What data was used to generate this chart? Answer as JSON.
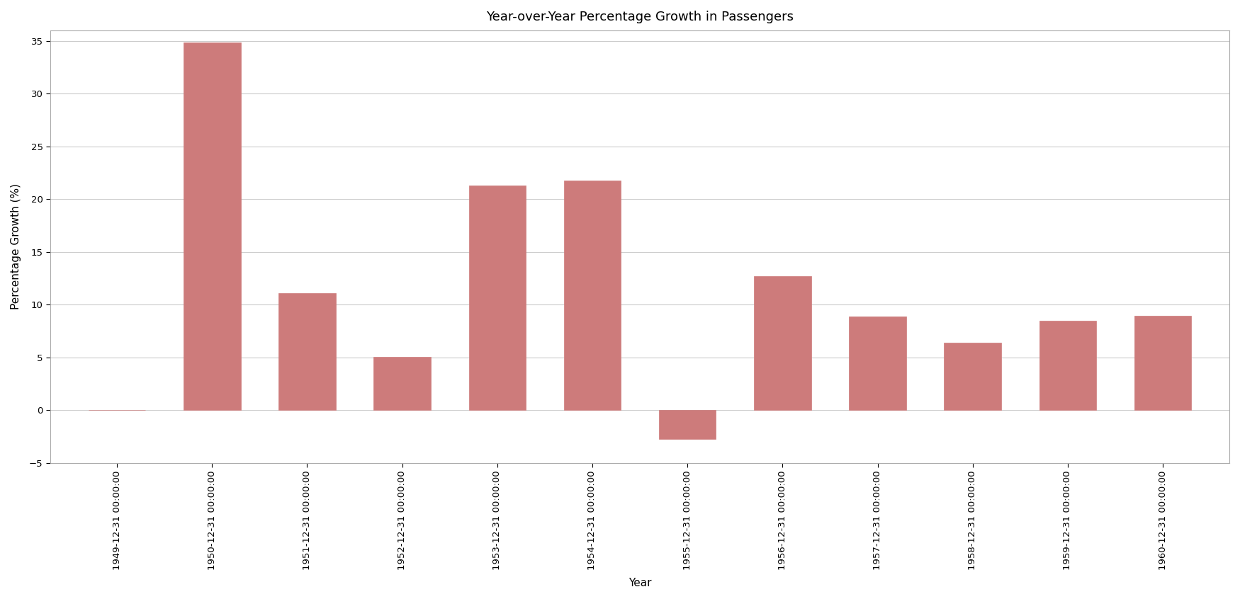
{
  "categories": [
    "1949-12-31 00:00:00",
    "1950-12-31 00:00:00",
    "1951-12-31 00:00:00",
    "1952-12-31 00:00:00",
    "1953-12-31 00:00:00",
    "1954-12-31 00:00:00",
    "1955-12-31 00:00:00",
    "1956-12-31 00:00:00",
    "1957-12-31 00:00:00",
    "1958-12-31 00:00:00",
    "1959-12-31 00:00:00",
    "1960-12-31 00:00:00"
  ],
  "values": [
    0.0,
    34.88,
    11.07,
    5.08,
    21.31,
    21.74,
    -2.74,
    12.68,
    8.91,
    6.38,
    8.47,
    8.93
  ],
  "bar_color": "#cd7b7b",
  "bar_edge_color": "#cd7b7b",
  "title": "Year-over-Year Percentage Growth in Passengers",
  "xlabel": "Year",
  "ylabel": "Percentage Growth (%)",
  "ylim": [
    -5,
    36
  ],
  "yticks": [
    -5,
    0,
    5,
    10,
    15,
    20,
    25,
    30,
    35
  ],
  "background_color": "#ffffff",
  "grid_color": "#cccccc",
  "title_fontsize": 13,
  "label_fontsize": 11,
  "tick_fontsize": 9.5
}
